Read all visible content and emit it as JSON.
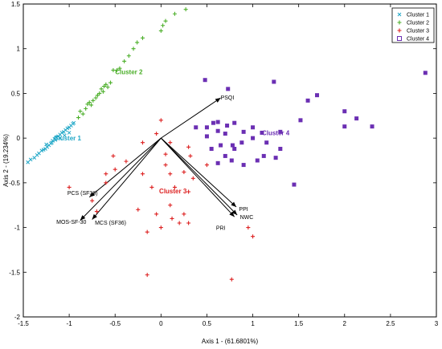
{
  "chart_data": {
    "type": "scatter",
    "title": "",
    "xlabel": "Axis 1 - (61.6801%)",
    "ylabel": "Axis 2 - (19.234%)",
    "xlim": [
      -1.5,
      3.0
    ],
    "ylim": [
      -2.0,
      1.5
    ],
    "xticks": [
      "-1.5",
      "-1",
      "-0.5",
      "0",
      "0.5",
      "1",
      "1.5",
      "2",
      "2.5",
      "3"
    ],
    "yticks": [
      "-2",
      "-1.5",
      "-1",
      "-0.5",
      "0",
      "0.5",
      "1",
      "1.5"
    ],
    "grid": false,
    "legend": "top-right",
    "series": [
      {
        "name": "Cluster 1",
        "marker": "x",
        "color": "#1fa7c7",
        "points": [
          [
            -1.45,
            -0.27
          ],
          [
            -1.42,
            -0.24
          ],
          [
            -1.38,
            -0.22
          ],
          [
            -1.35,
            -0.19
          ],
          [
            -1.33,
            -0.17
          ],
          [
            -1.3,
            -0.14
          ],
          [
            -1.28,
            -0.13
          ],
          [
            -1.26,
            -0.12
          ],
          [
            -1.24,
            -0.1
          ],
          [
            -1.22,
            -0.08
          ],
          [
            -1.2,
            -0.06
          ],
          [
            -1.19,
            -0.05
          ],
          [
            -1.18,
            -0.03
          ],
          [
            -1.16,
            -0.01
          ],
          [
            -1.14,
            0.01
          ],
          [
            -1.12,
            0.02
          ],
          [
            -1.1,
            0.04
          ],
          [
            -1.08,
            0.06
          ],
          [
            -1.06,
            0.07
          ],
          [
            -1.04,
            0.09
          ],
          [
            -1.02,
            0.11
          ],
          [
            -1.0,
            0.12
          ],
          [
            -0.98,
            0.14
          ],
          [
            -0.96,
            0.16
          ],
          [
            -0.95,
            0.17
          ],
          [
            -1.25,
            -0.07
          ],
          [
            -1.15,
            -0.02
          ],
          [
            -1.05,
            0.03
          ],
          [
            -1.0,
            0.06
          ],
          [
            -1.1,
            0.0
          ]
        ]
      },
      {
        "name": "Cluster 2",
        "marker": "+",
        "color": "#4caf2a",
        "points": [
          [
            -0.9,
            0.23
          ],
          [
            -0.88,
            0.3
          ],
          [
            -0.85,
            0.27
          ],
          [
            -0.82,
            0.33
          ],
          [
            -0.8,
            0.38
          ],
          [
            -0.78,
            0.4
          ],
          [
            -0.76,
            0.37
          ],
          [
            -0.74,
            0.42
          ],
          [
            -0.71,
            0.45
          ],
          [
            -0.69,
            0.48
          ],
          [
            -0.67,
            0.5
          ],
          [
            -0.65,
            0.55
          ],
          [
            -0.63,
            0.52
          ],
          [
            -0.62,
            0.58
          ],
          [
            -0.6,
            0.6
          ],
          [
            -0.58,
            0.57
          ],
          [
            -0.55,
            0.62
          ],
          [
            -0.52,
            0.76
          ],
          [
            -0.48,
            0.76
          ],
          [
            -0.45,
            0.78
          ],
          [
            -0.4,
            0.86
          ],
          [
            -0.35,
            0.92
          ],
          [
            -0.3,
            1.0
          ],
          [
            -0.26,
            1.07
          ],
          [
            -0.2,
            1.12
          ],
          [
            0.0,
            1.2
          ],
          [
            0.02,
            1.26
          ],
          [
            0.05,
            1.31
          ],
          [
            0.15,
            1.39
          ],
          [
            0.27,
            1.44
          ]
        ]
      },
      {
        "name": "Cluster 3",
        "marker": "+",
        "color": "#dd2222",
        "points": [
          [
            0.0,
            0.2
          ],
          [
            -0.05,
            0.05
          ],
          [
            -0.2,
            -0.05
          ],
          [
            0.1,
            -0.05
          ],
          [
            0.05,
            -0.18
          ],
          [
            0.3,
            -0.1
          ],
          [
            0.32,
            -0.2
          ],
          [
            -0.52,
            -0.2
          ],
          [
            -0.38,
            -0.26
          ],
          [
            -0.5,
            -0.35
          ],
          [
            -0.6,
            -0.4
          ],
          [
            -0.6,
            -0.5
          ],
          [
            0.05,
            -0.3
          ],
          [
            0.1,
            -0.4
          ],
          [
            0.25,
            -0.38
          ],
          [
            0.35,
            -0.45
          ],
          [
            -0.2,
            -0.4
          ],
          [
            -0.1,
            -0.55
          ],
          [
            0.15,
            -0.55
          ],
          [
            0.3,
            -0.6
          ],
          [
            -1.0,
            -0.55
          ],
          [
            -0.75,
            -0.7
          ],
          [
            -0.7,
            -0.82
          ],
          [
            -0.25,
            -0.8
          ],
          [
            -0.05,
            -0.85
          ],
          [
            0.1,
            -0.75
          ],
          [
            0.12,
            -0.9
          ],
          [
            0.2,
            -0.95
          ],
          [
            0.25,
            -0.85
          ],
          [
            0.3,
            -0.95
          ],
          [
            -0.15,
            -1.05
          ],
          [
            0.0,
            -1.0
          ],
          [
            0.95,
            -1.0
          ],
          [
            1.0,
            -1.1
          ],
          [
            -0.15,
            -1.53
          ],
          [
            0.77,
            -1.58
          ],
          [
            0.5,
            -0.3
          ]
        ]
      },
      {
        "name": "Cluster 4",
        "marker": "square",
        "color": "#6b2fb3",
        "points": [
          [
            0.48,
            0.65
          ],
          [
            0.73,
            0.55
          ],
          [
            1.23,
            0.63
          ],
          [
            1.6,
            0.42
          ],
          [
            1.7,
            0.48
          ],
          [
            2.0,
            0.3
          ],
          [
            2.13,
            0.22
          ],
          [
            2.88,
            0.73
          ],
          [
            1.52,
            0.2
          ],
          [
            2.3,
            0.13
          ],
          [
            2.0,
            0.13
          ],
          [
            0.38,
            0.12
          ],
          [
            0.5,
            0.12
          ],
          [
            0.57,
            0.17
          ],
          [
            0.62,
            0.18
          ],
          [
            0.72,
            0.14
          ],
          [
            0.8,
            0.17
          ],
          [
            1.0,
            0.12
          ],
          [
            0.62,
            0.08
          ],
          [
            0.7,
            0.05
          ],
          [
            0.9,
            0.07
          ],
          [
            1.1,
            0.06
          ],
          [
            1.3,
            0.07
          ],
          [
            0.5,
            0.02
          ],
          [
            0.65,
            -0.08
          ],
          [
            0.78,
            -0.08
          ],
          [
            0.88,
            -0.05
          ],
          [
            1.0,
            0.0
          ],
          [
            1.15,
            -0.05
          ],
          [
            0.55,
            -0.12
          ],
          [
            0.7,
            -0.2
          ],
          [
            0.8,
            -0.12
          ],
          [
            0.62,
            -0.28
          ],
          [
            0.77,
            -0.25
          ],
          [
            0.9,
            -0.3
          ],
          [
            1.05,
            -0.25
          ],
          [
            1.12,
            -0.2
          ],
          [
            1.25,
            -0.22
          ],
          [
            1.3,
            -0.12
          ],
          [
            1.45,
            -0.52
          ]
        ]
      }
    ],
    "cluster_labels": [
      {
        "text": "Cluster 1",
        "x": -1.17,
        "y": 0.0,
        "color": "#1fa7c7"
      },
      {
        "text": "Cluster 2",
        "x": -0.5,
        "y": 0.74,
        "color": "#4caf2a"
      },
      {
        "text": "Cluster 3",
        "x": -0.02,
        "y": -0.59,
        "color": "#dd2222"
      },
      {
        "text": "Cluster 4",
        "x": 1.1,
        "y": 0.06,
        "color": "#6b2fb3"
      }
    ],
    "vectors": [
      {
        "label": "PSQI",
        "x": 0.65,
        "y": 0.45,
        "lx": 0.65,
        "ly": 0.46
      },
      {
        "label": "PCS (SF36)",
        "x": -0.78,
        "y": -0.66,
        "lx": -1.02,
        "ly": -0.61
      },
      {
        "label": "MOS-SF-30",
        "x": -0.88,
        "y": -0.92,
        "lx": -1.14,
        "ly": -0.93
      },
      {
        "label": "MCS (SF36)",
        "x": -0.75,
        "y": -0.91,
        "lx": -0.72,
        "ly": -0.94
      },
      {
        "label": "PPI",
        "x": 0.82,
        "y": -0.77,
        "lx": 0.85,
        "ly": -0.79
      },
      {
        "label": "NWC",
        "x": 0.83,
        "y": -0.86,
        "lx": 0.86,
        "ly": -0.88
      },
      {
        "label": "PRI",
        "x": 0.8,
        "y": -0.88,
        "lx": 0.6,
        "ly": -1.0
      }
    ],
    "vector_origin": [
      0.0,
      0.0
    ]
  }
}
